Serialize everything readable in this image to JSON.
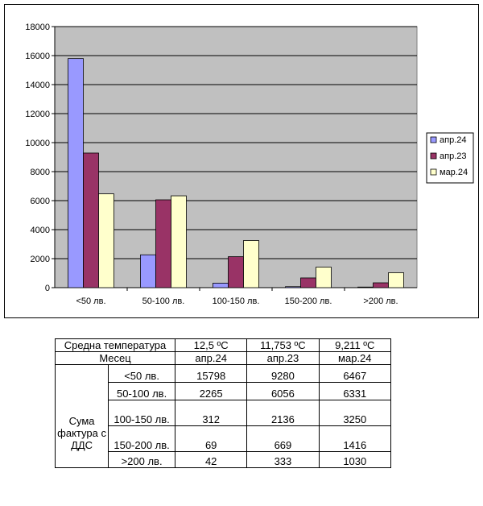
{
  "chart_data": {
    "type": "bar",
    "categories": [
      "<50 лв.",
      "50-100 лв.",
      "100-150 лв.",
      "150-200 лв.",
      ">200 лв."
    ],
    "series": [
      {
        "name": "апр.24",
        "values": [
          15798,
          2265,
          312,
          69,
          42
        ],
        "color": "#9999ff"
      },
      {
        "name": "апр.23",
        "values": [
          9280,
          6056,
          2136,
          669,
          333
        ],
        "color": "#993366"
      },
      {
        "name": "мар.24",
        "values": [
          6467,
          6331,
          3250,
          1416,
          1030
        ],
        "color": "#ffffcc"
      }
    ],
    "ylim": [
      0,
      18000
    ],
    "yticks": [
      "0",
      "2000",
      "4000",
      "6000",
      "8000",
      "10000",
      "12000",
      "14000",
      "16000",
      "18000"
    ],
    "grid": true,
    "legend": "right",
    "plot_background": "#c0c0c0"
  },
  "table": {
    "temp_label": "Средна температура",
    "temps": [
      "12,5 ºC",
      "11,753 ºC",
      "9,211 ºC"
    ],
    "month_label": "Месец",
    "months": [
      "апр.24",
      "апр.23",
      "мар.24"
    ],
    "group_label": "Сума фактура с ДДС",
    "rows": [
      {
        "label": "<50 лв.",
        "values": [
          "15798",
          "9280",
          "6467"
        ]
      },
      {
        "label": "50-100 лв.",
        "values": [
          "2265",
          "6056",
          "6331"
        ]
      },
      {
        "label": "100-150 лв.",
        "values": [
          "312",
          "2136",
          "3250"
        ]
      },
      {
        "label": "150-200 лв.",
        "values": [
          "69",
          "669",
          "1416"
        ]
      },
      {
        "label": ">200 лв.",
        "values": [
          "42",
          "333",
          "1030"
        ]
      }
    ]
  }
}
